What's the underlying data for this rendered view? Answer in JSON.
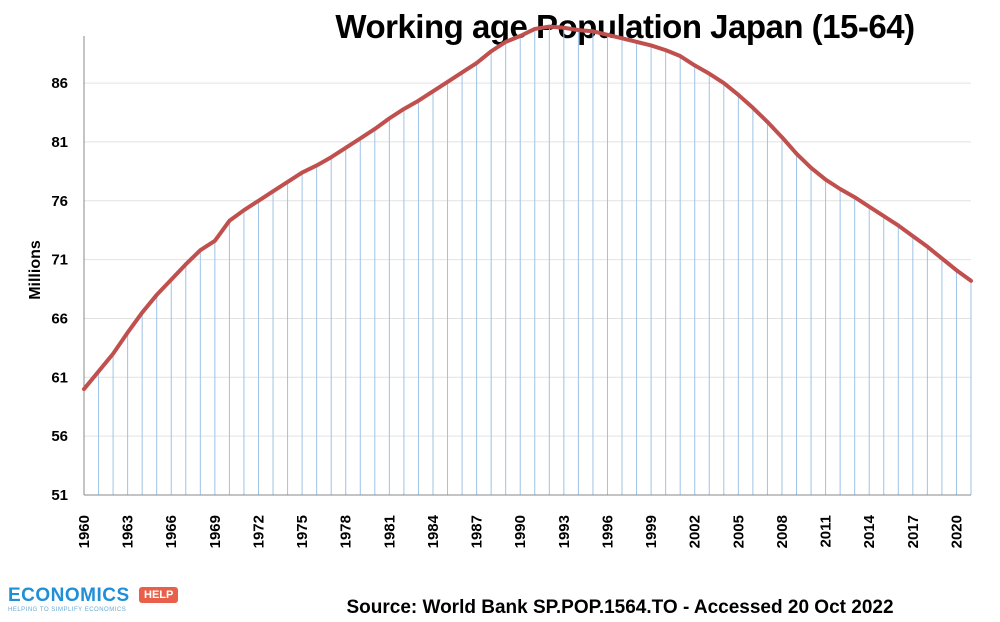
{
  "chart_data": {
    "type": "line",
    "title": "Working age Population Japan (15-64)",
    "ylabel": "Millions",
    "xlabel": "",
    "ylim": [
      51,
      90
    ],
    "yticks": [
      51,
      56,
      61,
      66,
      71,
      76,
      81,
      86
    ],
    "xticks": [
      1960,
      1963,
      1966,
      1969,
      1972,
      1975,
      1978,
      1981,
      1984,
      1987,
      1990,
      1993,
      1996,
      1999,
      2002,
      2005,
      2008,
      2011,
      2014,
      2017,
      2020
    ],
    "x": [
      1960,
      1961,
      1962,
      1963,
      1964,
      1965,
      1966,
      1967,
      1968,
      1969,
      1970,
      1971,
      1972,
      1973,
      1974,
      1975,
      1976,
      1977,
      1978,
      1979,
      1980,
      1981,
      1982,
      1983,
      1984,
      1985,
      1986,
      1987,
      1988,
      1989,
      1990,
      1991,
      1992,
      1993,
      1994,
      1995,
      1996,
      1997,
      1998,
      1999,
      2000,
      2001,
      2002,
      2003,
      2004,
      2005,
      2006,
      2007,
      2008,
      2009,
      2010,
      2011,
      2012,
      2013,
      2014,
      2015,
      2016,
      2017,
      2018,
      2019,
      2020,
      2021
    ],
    "series": [
      {
        "values": [
          60.0,
          61.5,
          63.0,
          64.8,
          66.5,
          68.0,
          69.3,
          70.6,
          71.8,
          72.6,
          74.3,
          75.2,
          76.0,
          76.8,
          77.6,
          78.4,
          79.0,
          79.7,
          80.5,
          81.3,
          82.1,
          83.0,
          83.8,
          84.5,
          85.3,
          86.1,
          86.9,
          87.7,
          88.7,
          89.5,
          90.0,
          90.6,
          90.8,
          90.7,
          90.5,
          90.4,
          90.1,
          89.8,
          89.5,
          89.2,
          88.8,
          88.3,
          87.5,
          86.8,
          86.0,
          85.0,
          83.9,
          82.7,
          81.4,
          80.0,
          78.8,
          77.8,
          77.0,
          76.3,
          75.5,
          74.7,
          73.9,
          73.0,
          72.1,
          71.1,
          70.1,
          69.2
        ],
        "color": "#c0504d"
      }
    ],
    "grid": true,
    "gridlines_vertical_color": "#9dc3e6"
  },
  "source": "Source: World Bank SP.POP.1564.TO - Accessed 20 Oct 2022",
  "logo": {
    "text": "ECONOMICS",
    "badge": "HELP",
    "tagline": "HELPING TO SIMPLIFY ECONOMICS"
  }
}
